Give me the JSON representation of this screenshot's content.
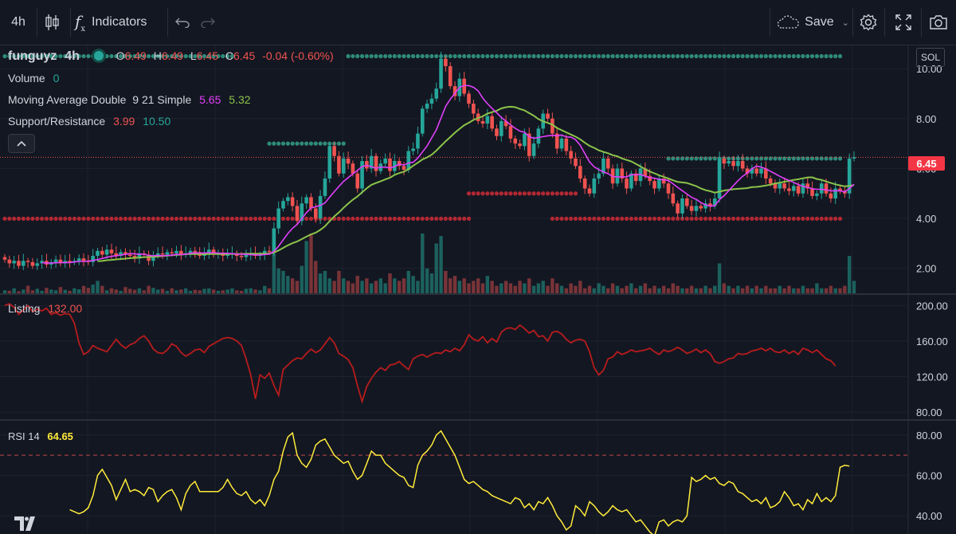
{
  "toolbar": {
    "interval": "4h",
    "indicators_label": "Indicators",
    "save_label": "Save"
  },
  "legend": {
    "symbol": "funguyz",
    "interval": "4h",
    "ohlc": {
      "o_label": "O",
      "o": "6.49",
      "h_label": "H",
      "h": "6.49",
      "l_label": "L",
      "l": "6.45",
      "c_label": "C",
      "c": "6.45",
      "change": "-0.04 (-0.60%)"
    },
    "volume": {
      "name": "Volume",
      "value": "0"
    },
    "ma": {
      "name": "Moving Average Double",
      "params": "9 21 Simple",
      "v1": "5.65",
      "v2": "5.32"
    },
    "sr": {
      "name": "Support/Resistance",
      "v1": "3.99",
      "v2": "10.50"
    },
    "listing": {
      "name": "Listing",
      "value": "132.00"
    },
    "rsi": {
      "name": "RSI 14",
      "value": "64.65"
    }
  },
  "symbol_tag": "SOL",
  "last_price_badge": "6.45",
  "colors": {
    "up": "#26a69a",
    "down": "#ef5350",
    "ma_fast": "#e040fb",
    "ma_slow": "#8bc34a",
    "support": "#b22833",
    "resistance": "#2e8b7a",
    "listing": "#b71c1c",
    "rsi": "#ffeb3b",
    "bg": "#131722",
    "grid": "#1e222d"
  },
  "chart_data": [
    {
      "type": "candlestick",
      "title": "funguyz 4h",
      "ylim": [
        1.0,
        10.9
      ],
      "yticks": [
        "10.00",
        "8.00",
        "6.00",
        "4.00",
        "2.00"
      ],
      "yticks_values": [
        10,
        8,
        6,
        4,
        2
      ],
      "closes": [
        2.35,
        2.2,
        2.3,
        2.1,
        2.3,
        2.25,
        2.1,
        2.2,
        2.3,
        2.15,
        2.25,
        2.35,
        2.2,
        2.3,
        2.25,
        2.3,
        2.4,
        2.3,
        2.25,
        2.5,
        2.7,
        2.55,
        2.75,
        2.6,
        2.5,
        2.65,
        2.55,
        2.5,
        2.4,
        2.6,
        2.55,
        2.3,
        2.5,
        2.6,
        2.55,
        2.65,
        2.6,
        2.7,
        2.55,
        2.6,
        2.7,
        2.65,
        2.5,
        2.6,
        2.75,
        2.55,
        2.6,
        2.5,
        2.55,
        2.6,
        2.5,
        2.45,
        2.55,
        2.6,
        2.5,
        2.55,
        2.7,
        2.65,
        3.6,
        4.4,
        4.7,
        4.85,
        4.5,
        3.9,
        4.6,
        4.85,
        4.4,
        4.0,
        4.9,
        5.6,
        6.9,
        6.5,
        5.8,
        6.4,
        6.2,
        5.8,
        5.2,
        6.3,
        6.0,
        6.5,
        5.9,
        6.2,
        6.4,
        5.9,
        6.3,
        6.1,
        5.95,
        6.7,
        6.8,
        7.4,
        8.4,
        8.6,
        8.8,
        9.2,
        10.4,
        10.1,
        9.3,
        8.9,
        9.6,
        9.0,
        8.6,
        8.2,
        7.9,
        7.8,
        8.1,
        7.6,
        7.3,
        7.9,
        7.7,
        7.2,
        7.0,
        6.9,
        7.4,
        6.5,
        7.0,
        7.6,
        8.2,
        8.0,
        7.4,
        6.8,
        7.2,
        6.7,
        6.4,
        6.1,
        5.6,
        5.2,
        5.0,
        5.6,
        5.8,
        6.4,
        6.0,
        5.4,
        6.0,
        5.6,
        5.2,
        5.8,
        5.5,
        6.0,
        5.7,
        5.5,
        5.2,
        5.6,
        5.4,
        5.0,
        4.6,
        4.2,
        4.8,
        4.5,
        4.3,
        4.5,
        4.4,
        4.6,
        4.5,
        4.8,
        6.4,
        6.2,
        6.3,
        6.1,
        6.3,
        6.0,
        5.8,
        6.0,
        5.8,
        6.0,
        5.6,
        5.4,
        5.2,
        5.4,
        5.2,
        5.1,
        5.3,
        5.0,
        5.4,
        5.2,
        4.9,
        5.0,
        5.4,
        5.0,
        4.8,
        5.2,
        5.1,
        5.0,
        6.4,
        6.45
      ],
      "volumes": [
        0.12,
        0.1,
        0.2,
        0.08,
        0.15,
        0.3,
        0.12,
        0.18,
        0.1,
        0.22,
        0.15,
        0.12,
        0.25,
        0.14,
        0.1,
        0.2,
        0.16,
        0.3,
        0.22,
        0.35,
        0.5,
        0.3,
        0.12,
        0.2,
        0.15,
        0.1,
        0.25,
        0.18,
        0.14,
        0.2,
        0.12,
        0.3,
        0.22,
        0.15,
        0.18,
        0.1,
        0.2,
        0.12,
        0.15,
        0.2,
        0.1,
        0.14,
        0.12,
        0.18,
        0.2,
        0.15,
        0.1,
        0.12,
        0.15,
        0.2,
        0.12,
        0.1,
        0.18,
        0.2,
        0.15,
        0.12,
        0.3,
        0.2,
        1.6,
        1.0,
        0.9,
        0.7,
        0.6,
        0.5,
        1.1,
        2.1,
        2.4,
        1.3,
        0.8,
        0.9,
        0.6,
        0.5,
        0.9,
        0.6,
        0.5,
        0.4,
        0.7,
        0.5,
        0.6,
        0.4,
        0.5,
        0.6,
        0.4,
        0.8,
        0.6,
        0.5,
        0.6,
        0.9,
        0.7,
        0.5,
        2.4,
        1.0,
        0.8,
        2.0,
        2.3,
        0.9,
        0.6,
        0.7,
        0.5,
        0.6,
        0.4,
        0.5,
        0.6,
        0.4,
        0.7,
        0.5,
        0.3,
        0.4,
        0.5,
        0.4,
        0.3,
        0.5,
        0.4,
        0.6,
        0.3,
        0.4,
        0.5,
        0.3,
        0.6,
        0.4,
        0.3,
        0.2,
        0.4,
        0.3,
        0.5,
        0.2,
        0.3,
        0.2,
        0.4,
        0.3,
        0.2,
        0.4,
        0.3,
        0.2,
        0.3,
        0.4,
        0.2,
        0.3,
        0.4,
        0.2,
        0.3,
        0.2,
        0.3,
        0.2,
        0.4,
        0.3,
        0.2,
        0.2,
        0.3,
        0.2,
        0.2,
        0.3,
        0.2,
        0.3,
        1.2,
        0.4,
        0.3,
        0.2,
        0.3,
        0.2,
        0.3,
        0.2,
        0.3,
        0.2,
        0.3,
        0.2,
        0.2,
        0.3,
        0.2,
        0.3,
        0.2,
        0.2,
        0.3,
        0.2,
        0.2,
        0.4,
        0.2,
        0.2,
        0.3,
        0.2,
        0.2,
        0.3,
        1.5,
        0.5
      ],
      "support_levels": [
        {
          "value": 3.99,
          "range": [
            0,
            100
          ]
        },
        {
          "value": 5.0,
          "range": [
            100,
            123
          ]
        },
        {
          "value": 3.99,
          "range": [
            118,
            180
          ]
        }
      ],
      "resistance_levels": [
        {
          "value": 10.5,
          "range": [
            0,
            49
          ]
        },
        {
          "value": 10.5,
          "range": [
            74,
            180
          ]
        },
        {
          "value": 7.0,
          "range": [
            57,
            73
          ]
        },
        {
          "value": 6.4,
          "range": [
            143,
            180
          ]
        }
      ]
    },
    {
      "type": "line",
      "title": "Listing",
      "ylim": [
        72,
        212
      ],
      "yticks": [
        "200.00",
        "160.00",
        "120.00",
        "80.00"
      ],
      "yticks_values": [
        200,
        160,
        120,
        80
      ],
      "values": [
        200,
        202,
        198,
        190,
        195,
        200,
        193,
        196,
        194,
        197,
        190,
        192,
        189,
        191,
        190,
        180,
        158,
        145,
        148,
        155,
        152,
        150,
        148,
        155,
        162,
        156,
        152,
        156,
        158,
        163,
        166,
        160,
        151,
        147,
        146,
        150,
        157,
        154,
        147,
        143,
        146,
        150,
        151,
        147,
        154,
        157,
        160,
        163,
        164,
        163,
        160,
        155,
        140,
        122,
        95,
        122,
        118,
        124,
        110,
        99,
        128,
        133,
        138,
        141,
        140,
        146,
        151,
        147,
        150,
        157,
        164,
        158,
        146,
        143,
        139,
        130,
        110,
        92,
        109,
        118,
        125,
        130,
        127,
        133,
        134,
        137,
        132,
        128,
        140,
        143,
        145,
        142,
        145,
        147,
        146,
        150,
        148,
        152,
        149,
        156,
        167,
        162,
        160,
        165,
        158,
        163,
        159,
        170,
        174,
        175,
        173,
        178,
        174,
        169,
        172,
        165,
        166,
        160,
        170,
        171,
        168,
        162,
        158,
        161,
        162,
        160,
        148,
        130,
        122,
        127,
        140,
        142,
        148,
        145,
        147,
        150,
        148,
        149,
        150,
        152,
        148,
        145,
        150,
        148,
        150,
        153,
        150,
        146,
        148,
        151,
        147,
        150,
        146,
        137,
        135,
        137,
        140,
        141,
        146,
        145,
        146,
        149,
        150,
        152,
        149,
        152,
        148,
        147,
        150,
        146,
        149,
        145,
        152,
        150,
        147,
        150,
        145,
        140,
        138,
        132
      ],
      "current": 132.0
    },
    {
      "type": "line",
      "title": "RSI 14",
      "ylim": [
        31,
        87
      ],
      "yticks": [
        "80.00",
        "60.00",
        "40.00"
      ],
      "yticks_values": [
        80,
        60,
        40
      ],
      "overbought": 70,
      "oversold": 30,
      "values": [
        null,
        null,
        null,
        null,
        null,
        null,
        null,
        null,
        null,
        null,
        null,
        null,
        null,
        null,
        43,
        42,
        41,
        42,
        44,
        50,
        60,
        63,
        59,
        55,
        48,
        53,
        58,
        52,
        53,
        52,
        50,
        54,
        53,
        47,
        50,
        52,
        53,
        49,
        43,
        51,
        55,
        57,
        52,
        52,
        52,
        52,
        52,
        54,
        58,
        54,
        51,
        50,
        52,
        48,
        46,
        48,
        45,
        50,
        58,
        62,
        72,
        79,
        81,
        70,
        66,
        64,
        68,
        75,
        77,
        78,
        74,
        70,
        68,
        66,
        67,
        62,
        58,
        60,
        66,
        72,
        70,
        70,
        66,
        64,
        62,
        60,
        59,
        55,
        54,
        65,
        70,
        72,
        75,
        80,
        82,
        78,
        74,
        70,
        64,
        58,
        56,
        57,
        55,
        53,
        52,
        50,
        49,
        48,
        47,
        46,
        49,
        48,
        44,
        46,
        43,
        47,
        46,
        49,
        45,
        40,
        37,
        33,
        35,
        45,
        43,
        40,
        47,
        45,
        42,
        40,
        42,
        45,
        43,
        42,
        43,
        40,
        37,
        38,
        35,
        32,
        30,
        37,
        38,
        35,
        37,
        38,
        37,
        40,
        59,
        57,
        58,
        60,
        58,
        59,
        56,
        55,
        57,
        56,
        52,
        51,
        49,
        47,
        48,
        46,
        49,
        44,
        45,
        47,
        52,
        49,
        45,
        46,
        43,
        48,
        46,
        51,
        47,
        49,
        47,
        50,
        64,
        65,
        64.65
      ]
    }
  ]
}
